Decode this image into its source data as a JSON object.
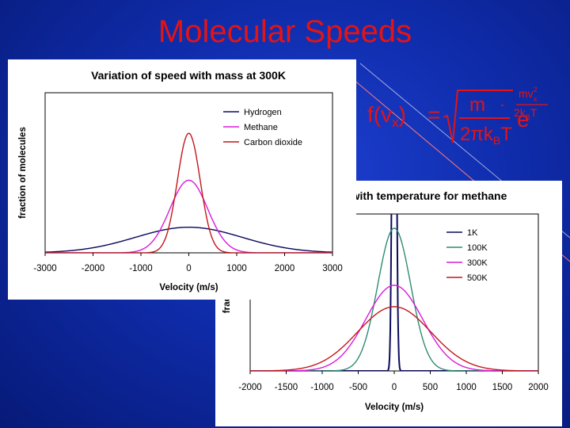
{
  "slide": {
    "title": "Molecular Speeds"
  },
  "formula": {
    "lhs": "f(v",
    "lhs_sub": "x",
    "lhs_close": ")",
    "equals": "=",
    "numerator": "m",
    "denominator": "2πk",
    "denominator_sub": "B",
    "denominator_tail": "T",
    "exp_base": "e",
    "exp_sign": "-",
    "exp_numerator": "mv",
    "exp_numerator_sup": "2",
    "exp_numerator_sub": "x",
    "exp_denominator": "2k",
    "exp_denominator_sub": "B",
    "exp_denominator_tail": "T",
    "color": "#e31414"
  },
  "chart_data": [
    {
      "type": "line",
      "title": "Variation of speed with mass at 300K",
      "xlabel": "Velocity (m/s)",
      "ylabel": "fraction of molecules",
      "xlim": [
        -3000,
        3000
      ],
      "xticks": [
        -3000,
        -2000,
        -1000,
        0,
        1000,
        2000,
        3000
      ],
      "ylim": [
        0,
        1.5
      ],
      "grid": false,
      "legend": "top-right",
      "series": [
        {
          "name": "Hydrogen",
          "color": "#0a0a5e",
          "sigma": 1113,
          "peak": 0.24
        },
        {
          "name": "Methane",
          "color": "#d81bd8",
          "sigma": 394,
          "peak": 0.68
        },
        {
          "name": "Carbon dioxide",
          "color": "#c4161c",
          "sigma": 238,
          "peak": 1.12
        }
      ]
    },
    {
      "type": "line",
      "title": "with temperature for methane",
      "xlabel": "Velocity (m/s)",
      "ylabel": "fraction o",
      "xlim": [
        -2000,
        2000
      ],
      "xticks": [
        -2000,
        -1500,
        -1000,
        -500,
        0,
        500,
        1000,
        1500,
        2000
      ],
      "ylim": [
        0,
        1.1
      ],
      "grid": false,
      "legend": "top-right",
      "series": [
        {
          "name": "1K",
          "color": "#0a0a5e",
          "sigma": 23,
          "peak": 5.0
        },
        {
          "name": "100K",
          "color": "#2e8b72",
          "sigma": 228,
          "peak": 1.0
        },
        {
          "name": "300K",
          "color": "#d81bd8",
          "sigma": 394,
          "peak": 0.6
        },
        {
          "name": "500K",
          "color": "#c4161c",
          "sigma": 509,
          "peak": 0.45
        }
      ]
    }
  ]
}
